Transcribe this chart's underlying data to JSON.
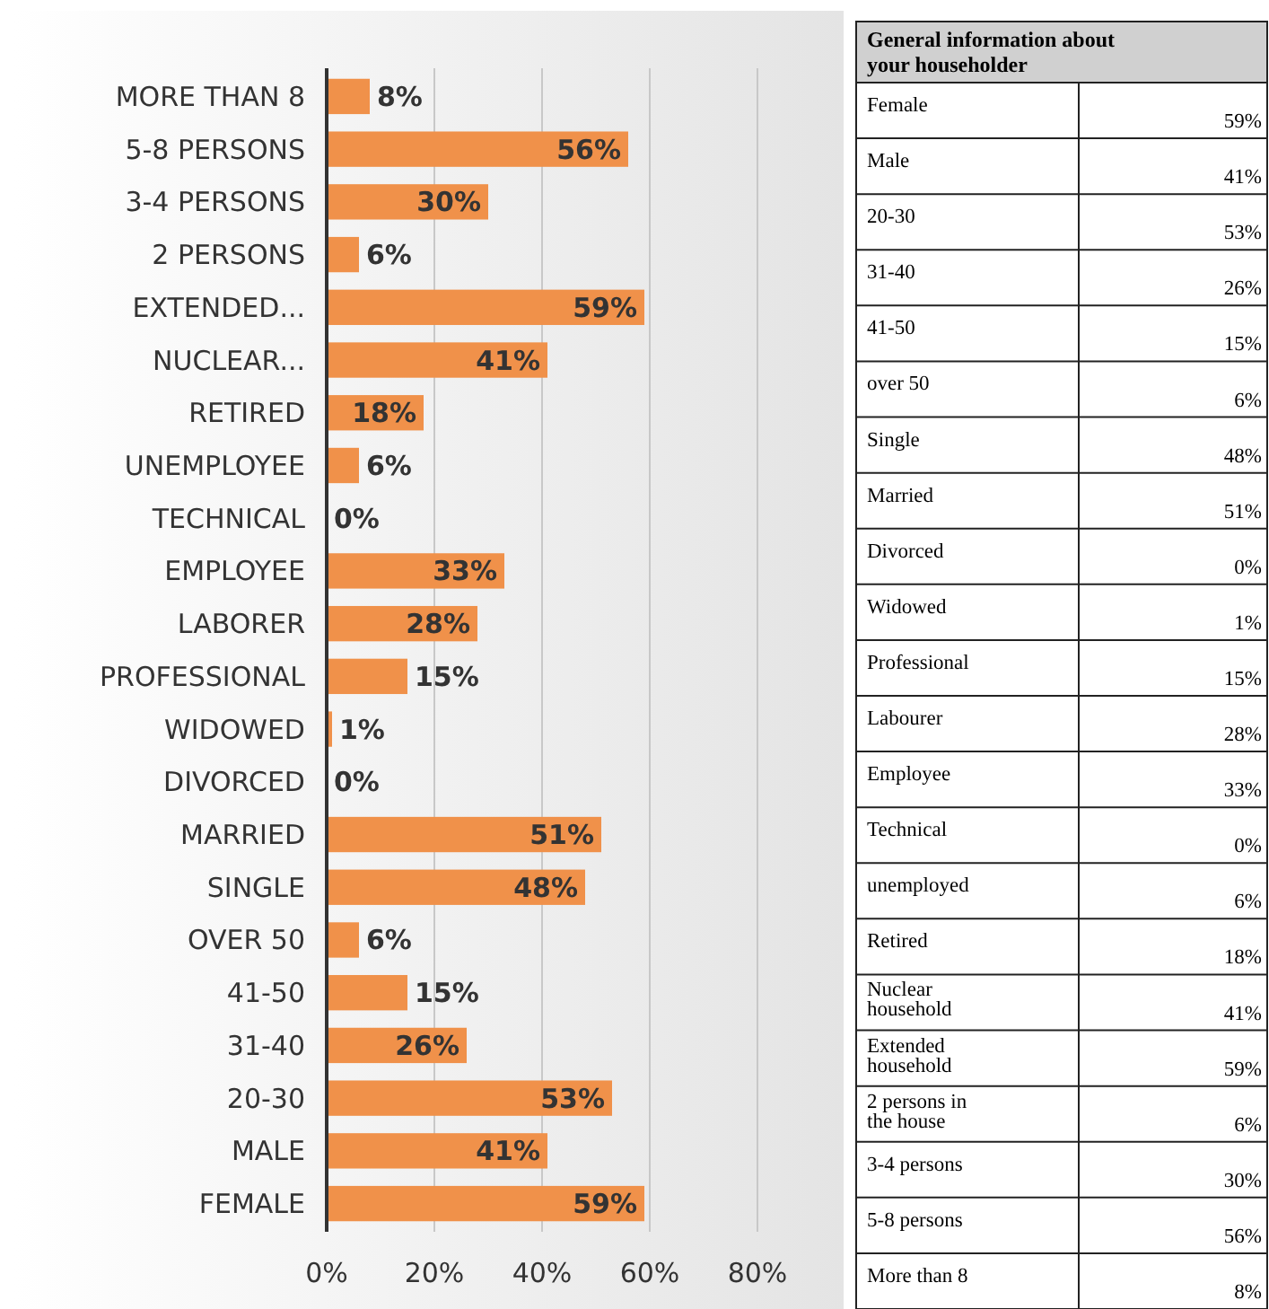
{
  "chart_data": [
    {
      "type": "bar",
      "orientation": "horizontal",
      "categories": [
        "MORE THAN 8",
        "5-8 PERSONS",
        "3-4 PERSONS",
        "2 PERSONS",
        "EXTENDED...",
        "NUCLEAR...",
        "RETIRED",
        "UNEMPLOYEE",
        "TECHNICAL",
        "EMPLOYEE",
        "LABORER",
        "PROFESSIONAL",
        "WIDOWED",
        "DIVORCED",
        "MARRIED",
        "SINGLE",
        "OVER 50",
        "41-50",
        "31-40",
        "20-30",
        "MALE",
        "FEMALE"
      ],
      "values": [
        8,
        56,
        30,
        6,
        59,
        41,
        18,
        6,
        0,
        33,
        28,
        15,
        1,
        0,
        51,
        48,
        6,
        15,
        26,
        53,
        41,
        59
      ],
      "color": "#f0914a",
      "data_labels": true,
      "value_labels": [
        "8%",
        "56%",
        "30%",
        "6%",
        "59%",
        "41%",
        "18%",
        "6%",
        "0%",
        "33%",
        "28%",
        "15%",
        "1%",
        "0%",
        "51%",
        "48%",
        "6%",
        "15%",
        "26%",
        "53%",
        "41%",
        "59%"
      ],
      "xlim": [
        0,
        80
      ],
      "xticks": [
        {
          "value": 0,
          "label": "0%"
        },
        {
          "value": 20,
          "label": "20%"
        },
        {
          "value": 40,
          "label": "40%"
        },
        {
          "value": 60,
          "label": "60%"
        },
        {
          "value": 80,
          "label": "80%"
        }
      ],
      "grid": "x"
    },
    {
      "type": "other",
      "title": "General information about your householder",
      "annotations": [
        "Female",
        "59%",
        "Male",
        "41%",
        "20-30",
        "53%",
        "31-40",
        "26%",
        "41-50",
        "15%",
        "over 50",
        "6%",
        "Single",
        "48%",
        "Married",
        "51%",
        "Divorced",
        "0%",
        "Widowed",
        "1%",
        "Professional",
        "15%",
        "Labourer",
        "28%",
        "Employee",
        "33%",
        "Technical",
        "0%",
        "unemployed",
        "6%",
        "Retired",
        "18%",
        "Nuclear household",
        "41%",
        "Extended household",
        "59%",
        "2 persons in the house",
        "6%",
        "3-4 persons",
        "30%",
        "5-8 persons",
        "56%",
        "More than 8",
        "8%"
      ]
    }
  ]
}
